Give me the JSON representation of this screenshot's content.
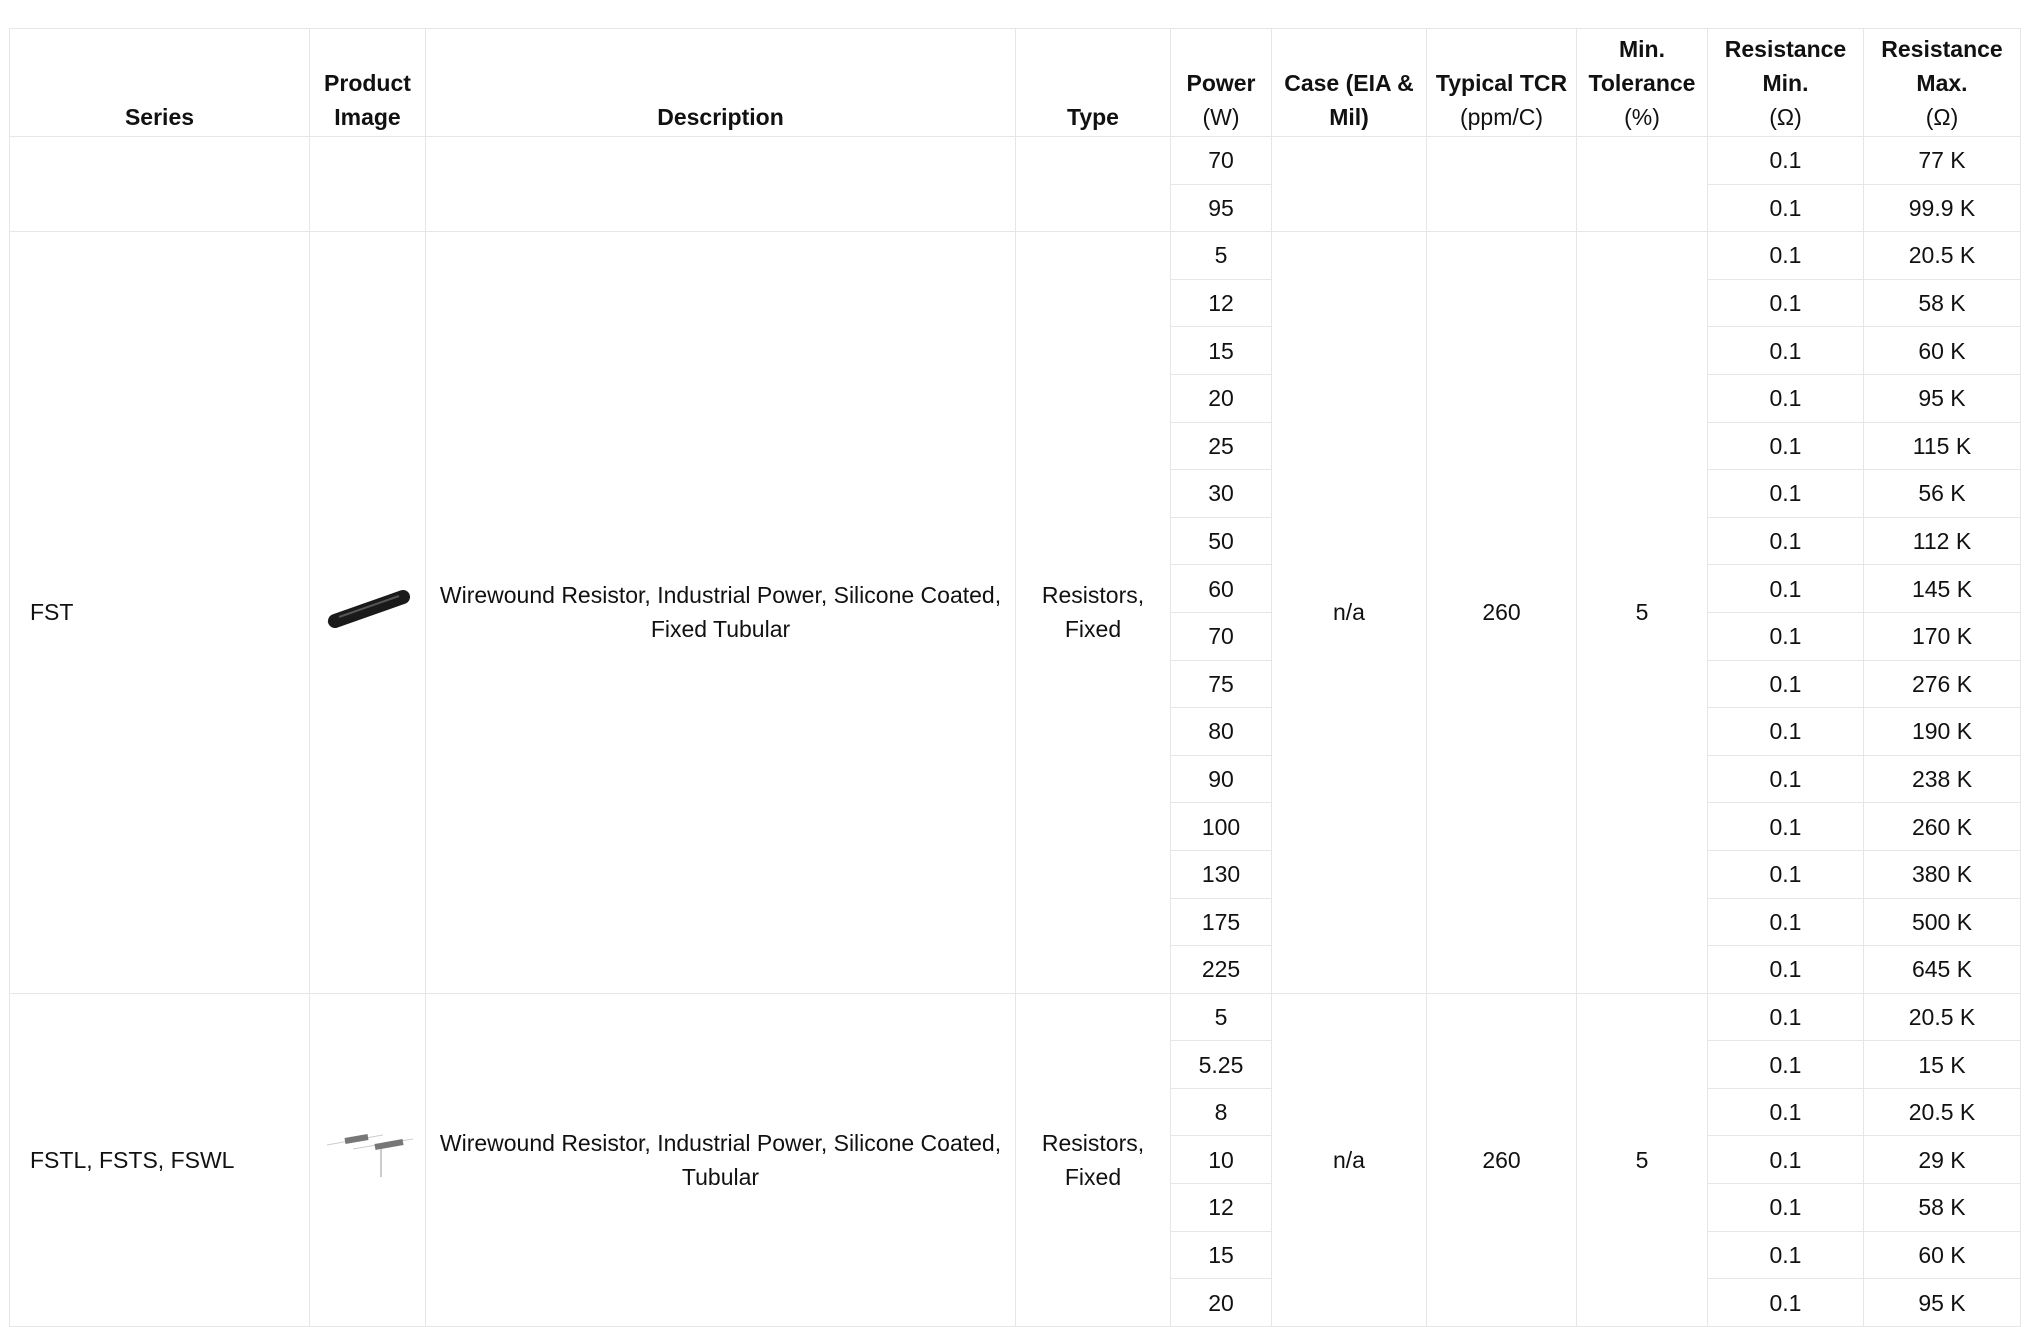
{
  "table": {
    "headers": [
      {
        "title": "Series"
      },
      {
        "title": "Product Image"
      },
      {
        "title": "Description"
      },
      {
        "title": "Type"
      },
      {
        "title": "Power",
        "unit": "(W)"
      },
      {
        "title": "Case (EIA & Mil)"
      },
      {
        "title": "Typical TCR",
        "unit": "(ppm/C)"
      },
      {
        "title": "Min. Tolerance",
        "unit": "(%)"
      },
      {
        "title": "Resistance Min.",
        "unit": "(Ω)"
      },
      {
        "title": "Resistance Max.",
        "unit": "(Ω)"
      }
    ],
    "groups": [
      {
        "rows": [
          [
            70,
            0.1,
            "77 K"
          ],
          [
            95,
            0.1,
            "99.9 K"
          ]
        ]
      },
      {
        "series": "FST",
        "description": "Wirewound Resistor, Industrial Power, Silicone Coated, Fixed Tubular",
        "type": "Resistors, Fixed",
        "case": "n/a",
        "tcr": 260,
        "tolerance": 5,
        "rows": [
          [
            5,
            0.1,
            "20.5 K"
          ],
          [
            12,
            0.1,
            "58 K"
          ],
          [
            15,
            0.1,
            "60 K"
          ],
          [
            20,
            0.1,
            "95 K"
          ],
          [
            25,
            0.1,
            "115 K"
          ],
          [
            30,
            0.1,
            "56 K"
          ],
          [
            50,
            0.1,
            "112 K"
          ],
          [
            60,
            0.1,
            "145 K"
          ],
          [
            70,
            0.1,
            "170 K"
          ],
          [
            75,
            0.1,
            "276 K"
          ],
          [
            80,
            0.1,
            "190 K"
          ],
          [
            90,
            0.1,
            "238 K"
          ],
          [
            100,
            0.1,
            "260 K"
          ],
          [
            130,
            0.1,
            "380 K"
          ],
          [
            175,
            0.1,
            "500 K"
          ],
          [
            225,
            0.1,
            "645 K"
          ]
        ]
      },
      {
        "series": "FSTL, FSTS, FSWL",
        "description": "Wirewound Resistor, Industrial Power, Silicone Coated, Tubular",
        "type": "Resistors, Fixed",
        "case": "n/a",
        "tcr": 260,
        "tolerance": 5,
        "rows": [
          [
            5,
            0.1,
            "20.5 K"
          ],
          [
            5.25,
            0.1,
            "15 K"
          ],
          [
            8,
            0.1,
            "20.5 K"
          ],
          [
            10,
            0.1,
            "29 K"
          ],
          [
            12,
            0.1,
            "58 K"
          ],
          [
            15,
            0.1,
            "60 K"
          ],
          [
            20,
            0.1,
            "95 K"
          ]
        ]
      }
    ]
  }
}
